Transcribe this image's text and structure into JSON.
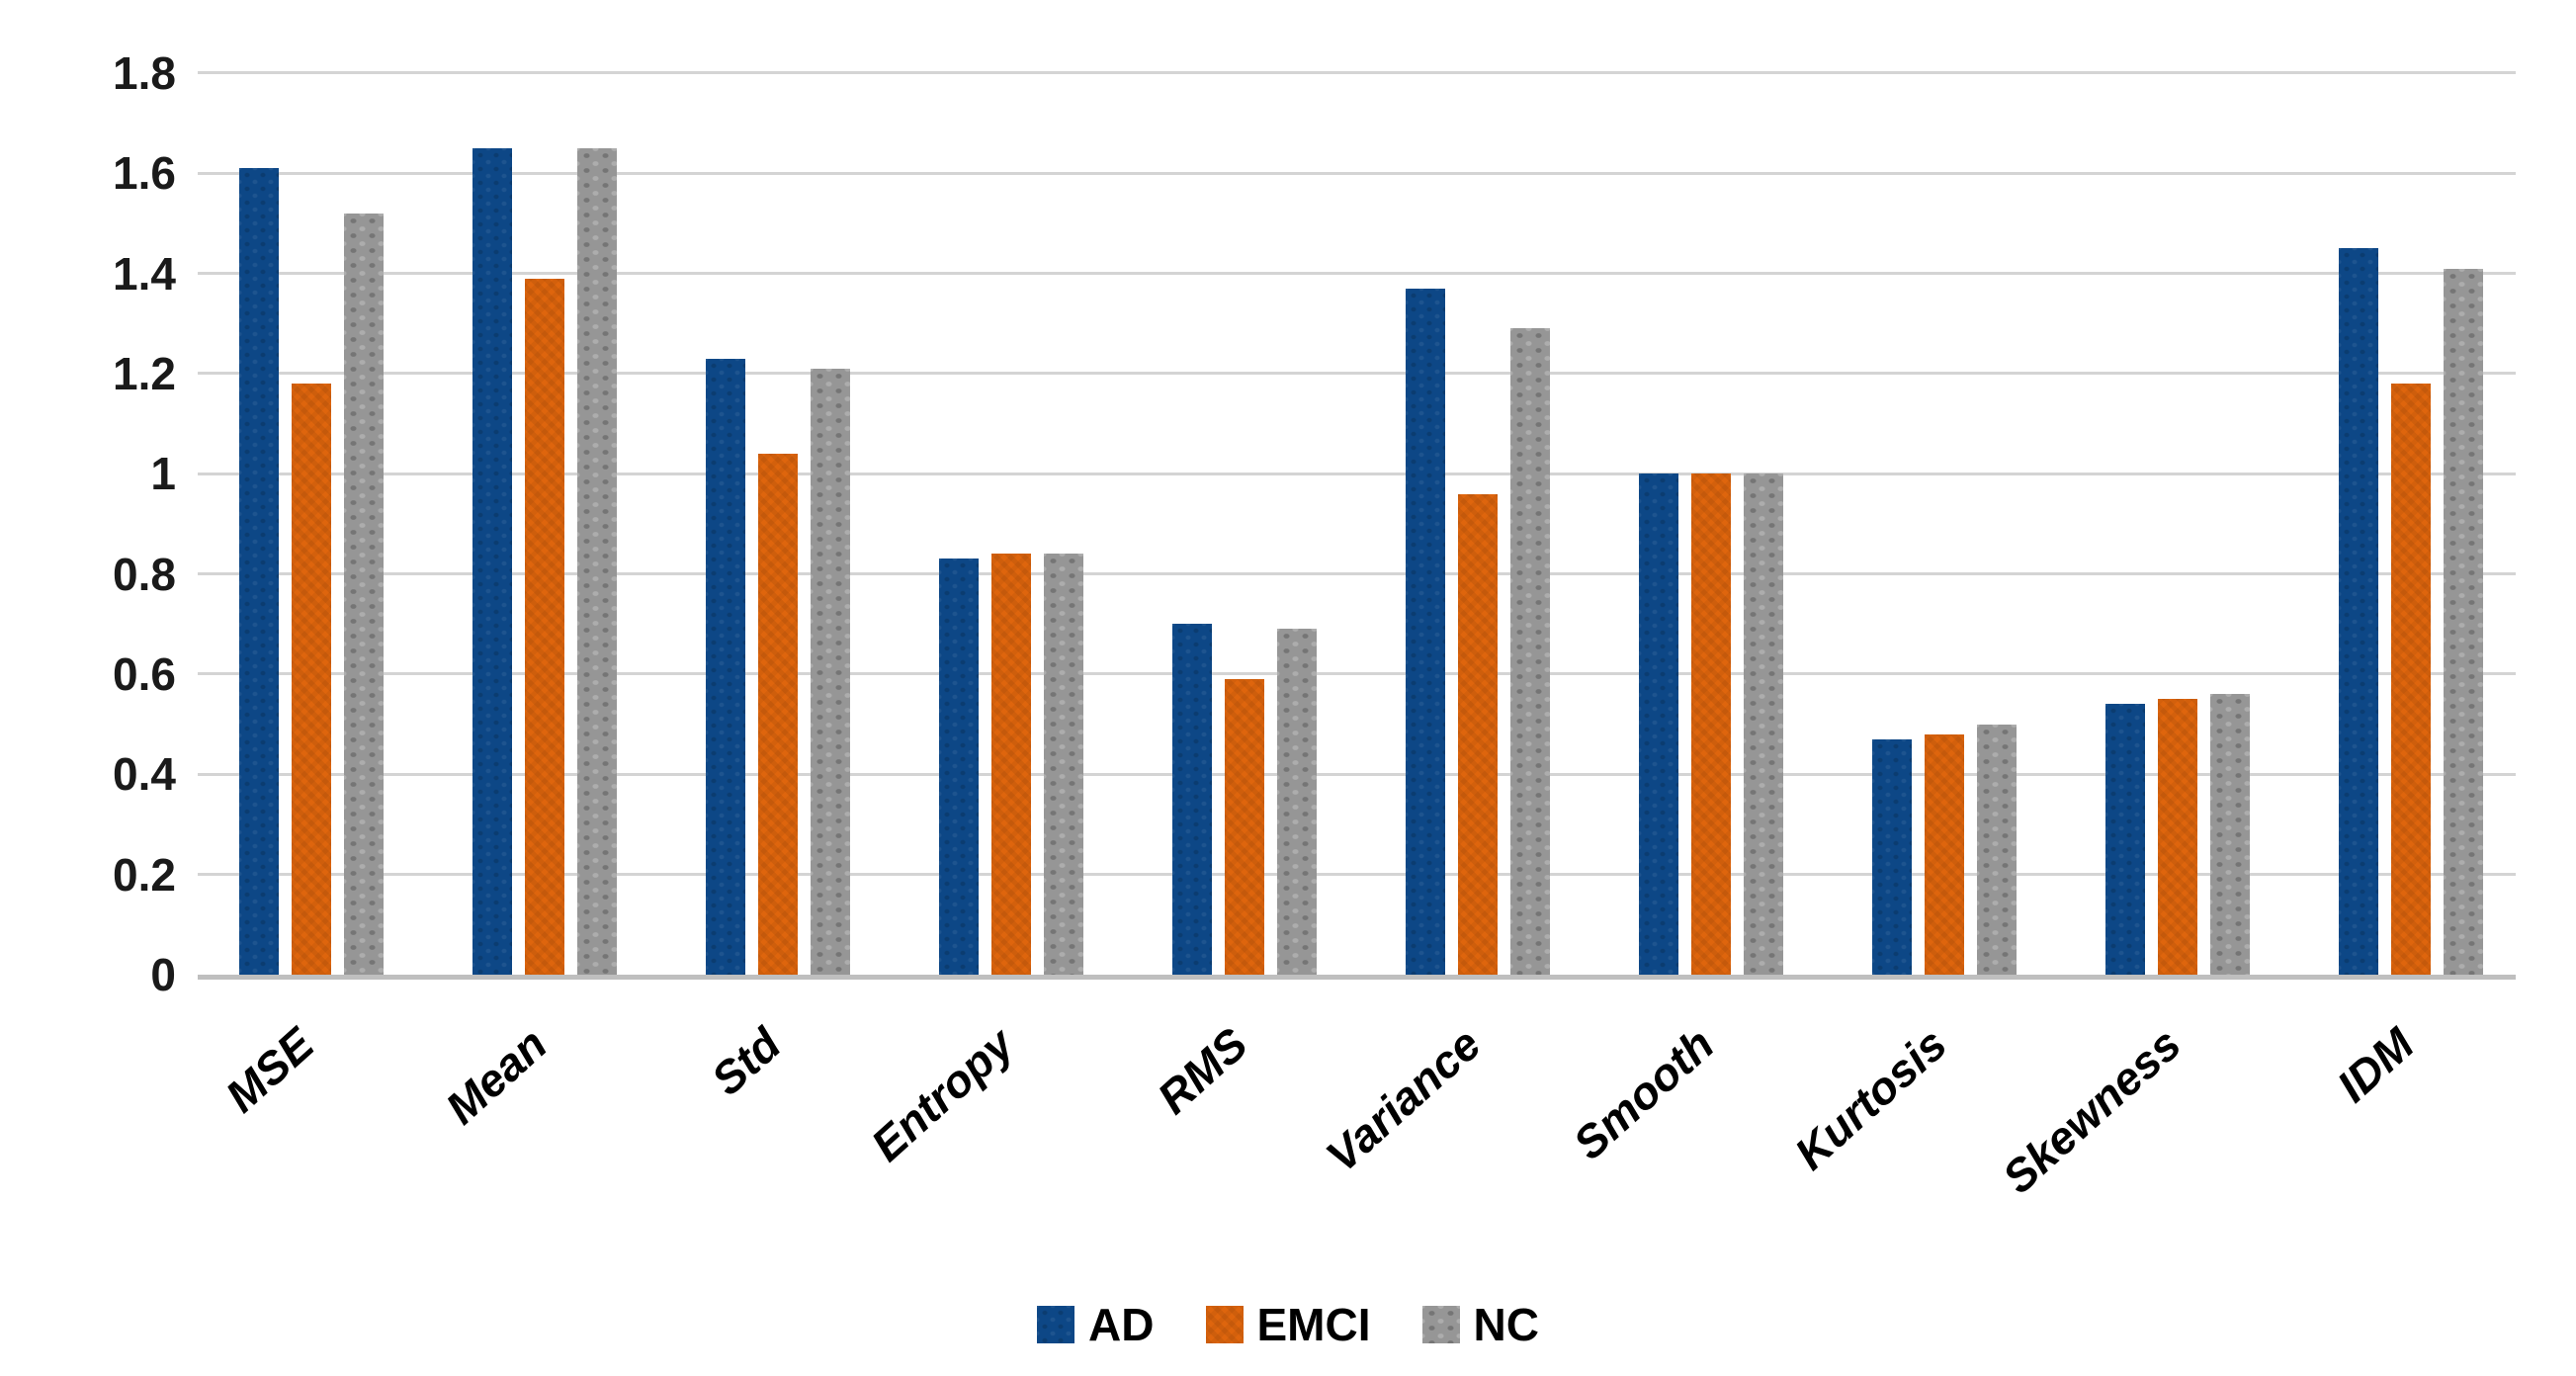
{
  "chart_data": {
    "type": "bar",
    "title": "",
    "xlabel": "",
    "ylabel": "",
    "categories": [
      "MSE",
      "Mean",
      "Std",
      "Entropy",
      "RMS",
      "Variance",
      "Smooth",
      "Kurtosis",
      "Skewness",
      "IDM"
    ],
    "series": [
      {
        "name": "AD",
        "color": "#0d4786",
        "values": [
          1.61,
          1.65,
          1.23,
          0.83,
          0.7,
          1.37,
          1.0,
          0.47,
          0.54,
          1.45
        ]
      },
      {
        "name": "EMCI",
        "color": "#de650d",
        "values": [
          1.18,
          1.39,
          1.04,
          0.84,
          0.59,
          0.96,
          1.0,
          0.48,
          0.55,
          1.18
        ]
      },
      {
        "name": "NC",
        "color": "#969696",
        "values": [
          1.52,
          1.65,
          1.21,
          0.84,
          0.69,
          1.29,
          1.0,
          0.5,
          0.56,
          1.41
        ]
      }
    ],
    "ylim": [
      0,
      1.8
    ],
    "ytick_step": 0.2,
    "yticks": [
      "1.8",
      "1.6",
      "1.4",
      "1.2",
      "1",
      "0.8",
      "0.6",
      "0.4",
      "0.2",
      "0"
    ],
    "grid": "horizontal",
    "gridline_color": "#d4d4d4",
    "axis_line_color": "#bfbfbf",
    "legend_position": "bottom",
    "background_color": "#ffffff"
  }
}
